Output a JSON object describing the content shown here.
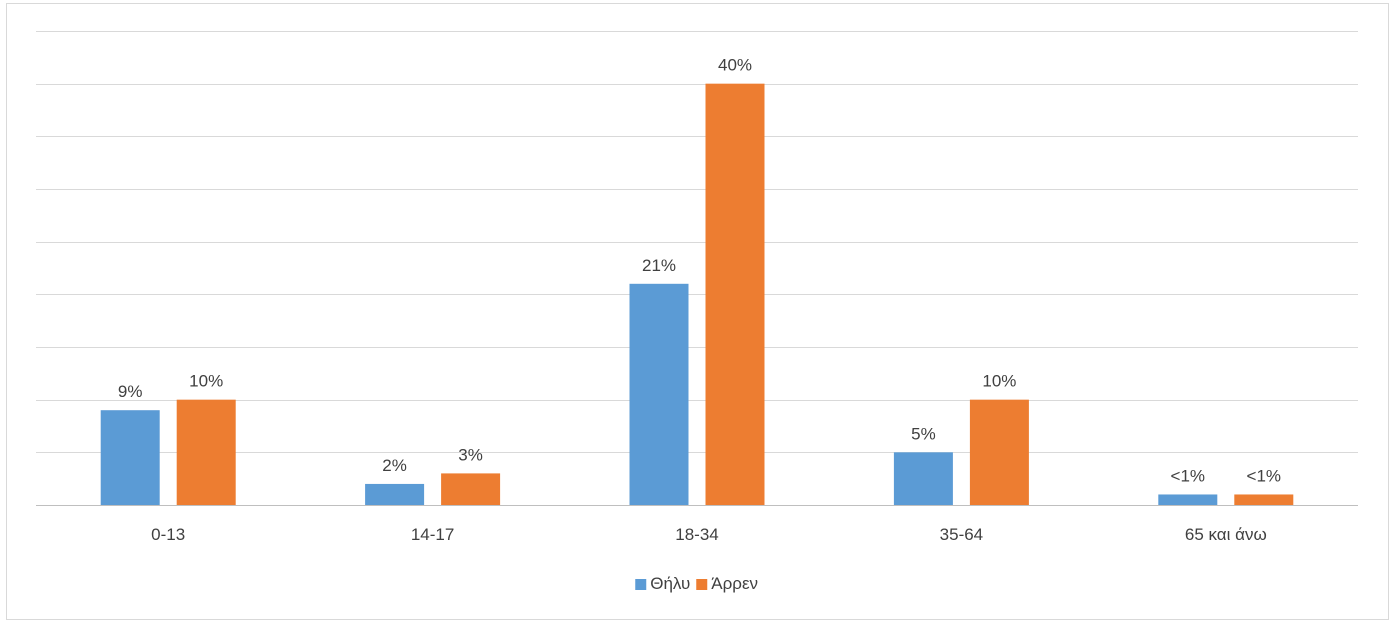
{
  "chart_data": {
    "type": "bar",
    "title": "",
    "xlabel": "",
    "ylabel": "",
    "categories": [
      "0-13",
      "14-17",
      "18-34",
      "35-64",
      "65 και άνω"
    ],
    "series": [
      {
        "name": "Θήλυ",
        "color": "#5b9bd5",
        "values": [
          9,
          2,
          21,
          5,
          1
        ],
        "labels": [
          "9%",
          "2%",
          "21%",
          "5%",
          "<1%"
        ]
      },
      {
        "name": "Άρρεν",
        "color": "#ed7d31",
        "values": [
          10,
          3,
          40,
          10,
          1
        ],
        "labels": [
          "10%",
          "3%",
          "40%",
          "10%",
          "<1%"
        ]
      }
    ],
    "ylim": [
      0,
      45
    ],
    "y_grid_step": 5,
    "grid": true,
    "y_tick_labels_visible": false,
    "legend_position": "bottom"
  }
}
